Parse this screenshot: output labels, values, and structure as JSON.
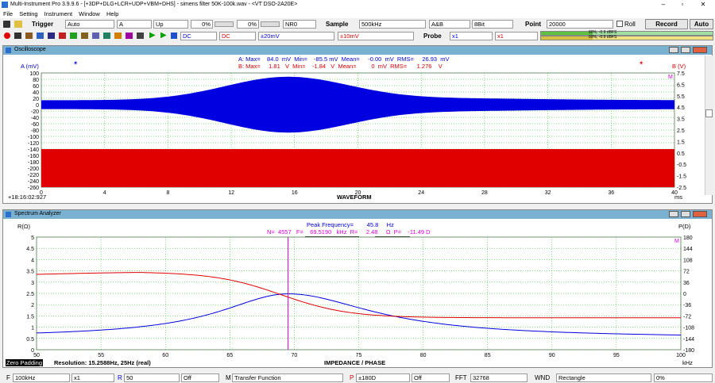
{
  "window": {
    "title": "Multi-Instrument Pro 3.9.9.6   - [+3DP+DLG+LCR+UDP+VBM+DHS]   - simens filter 50K-100k.wav   - <VT DSO-2A20E>",
    "min": "–",
    "max": "▫",
    "close": "✕"
  },
  "menu": [
    "File",
    "Setting",
    "Instrument",
    "Window",
    "Help"
  ],
  "toolbar1": {
    "trigger_label": "Trigger",
    "trigger_mode": "Auto",
    "trigger_ch": "A",
    "trigger_edge": "Up",
    "pct1": "0%",
    "pct2": "0%",
    "nr": "NR0",
    "sample_label": "Sample",
    "sample": "500kHz",
    "chan": "A&B",
    "bits": "8Bit",
    "point_label": "Point",
    "point": "20000",
    "roll": "Roll",
    "record": "Record",
    "auto": "Auto"
  },
  "toolbar2": {
    "coupling_a": "DC",
    "coupling_b": "DC",
    "range_a": "±20mV",
    "range_b": "±10mV",
    "probe_label": "Probe",
    "probe_a": "x1",
    "probe_b": "x1",
    "level1": "89%, -0.9 dBFS",
    "level2": "89%, -0.9 dBFS"
  },
  "oscilloscope": {
    "title": "Oscilloscope",
    "a_unit": "A (mV)",
    "b_unit": "B (V)",
    "statsA": "A: Max=    84.0  mV  Min=    -85.5 mV  Mean=     -0.00  mV  RMS=     26.93  mV",
    "statsB": "B: Max=     1.81   V  Min=    -1.84   V  Mean=         0  mV  RMS=      1.276    V",
    "yleft": [
      "100",
      "80",
      "60",
      "40",
      "20",
      "0",
      "-20",
      "-40",
      "-60",
      "-80",
      "-100",
      "-120",
      "-140",
      "-160",
      "-180",
      "-200",
      "-220",
      "-240",
      "-260"
    ],
    "yright": [
      "7.5",
      "6.5",
      "5.5",
      "4.5",
      "3.5",
      "2.5",
      "1.5",
      "0.5",
      "-0.5",
      "-1.5",
      "-2.5"
    ],
    "x": [
      "0",
      "4",
      "8",
      "12",
      "16",
      "20",
      "24",
      "28",
      "32",
      "36",
      "40"
    ],
    "xunit": "ms",
    "xtitle": "WAVEFORM",
    "time": "+18:16:02:927"
  },
  "spectrum": {
    "title": "Spectrum Analyzer",
    "left_unit": "R(Ω)",
    "right_unit": "P(D)",
    "peak": "Peak Frequency=        45.8     Hz",
    "marker": "N=  4557   F=    69.5190   kHz  R=     2.48     Ω  P=    -11.49 D",
    "yleft": [
      "5",
      "4.5",
      "4",
      "3.5",
      "3",
      "2.5",
      "2",
      "1.5",
      "1",
      "0.5",
      "0"
    ],
    "yright": [
      "180",
      "144",
      "108",
      "72",
      "36",
      "0",
      "-36",
      "-72",
      "-108",
      "-144",
      "-180"
    ],
    "x": [
      "50",
      "55",
      "60",
      "65",
      "70",
      "75",
      "80",
      "85",
      "90",
      "95",
      "100"
    ],
    "xunit": "kHz",
    "xtitle": "IMPEDANCE / PHASE",
    "zero_padding": "Zero Padding",
    "resolution": "Resolution: 15.2588Hz, 25Hz (real)"
  },
  "statusbar": {
    "f_label": "F",
    "f": "100kHz",
    "mult": "x1",
    "r_label": "R",
    "r": "50",
    "off1": "Off",
    "m_label": "M",
    "m": "Transfer Function",
    "p_label": "P",
    "p": "±180D",
    "off2": "Off",
    "fft_label": "FFT",
    "fft": "32768",
    "wnd_label": "WND",
    "wnd": "Rectangle",
    "pct": "0%"
  },
  "colors": {
    "chA": "#0000e0",
    "chB": "#e00000",
    "grid": "#00c000",
    "marker": "#d000d0"
  }
}
